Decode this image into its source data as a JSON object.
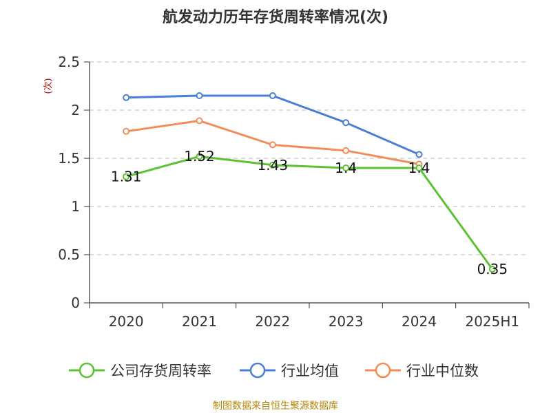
{
  "chart_data": {
    "type": "line",
    "title": "航发动力历年存货周转率情况(次)",
    "ylabel": "(次)",
    "xlabel": "",
    "categories": [
      "2020",
      "2021",
      "2022",
      "2023",
      "2024",
      "2025H1"
    ],
    "ylim": [
      0,
      2.5
    ],
    "yticks": [
      "0",
      "0.5",
      "1",
      "1.5",
      "2",
      "2.5"
    ],
    "grid": "horizontal dashed",
    "legend_position": "bottom",
    "series": [
      {
        "name": "公司存货周转率",
        "color": "#5cc232",
        "values": [
          1.31,
          1.52,
          1.43,
          1.4,
          1.4,
          0.35
        ],
        "labels": [
          "1.31",
          "1.52",
          "1.43",
          "1.4",
          "1.4",
          "0.35"
        ]
      },
      {
        "name": "行业均值",
        "color": "#4a7fd6",
        "values": [
          2.13,
          2.15,
          2.15,
          1.87,
          1.54,
          null
        ]
      },
      {
        "name": "行业中位数",
        "color": "#f28c5a",
        "values": [
          1.78,
          1.89,
          1.64,
          1.58,
          1.44,
          null
        ]
      }
    ]
  },
  "source_note": "制图数据来自恒生聚源数据库"
}
